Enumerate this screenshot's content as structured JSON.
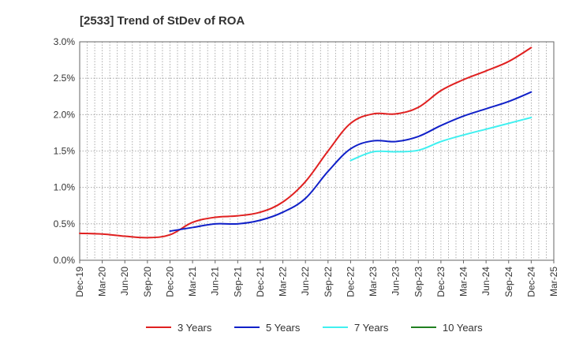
{
  "chart_data": {
    "type": "line",
    "title": "[2533]  Trend of StDev of ROA",
    "xlabel": "",
    "ylabel": "",
    "x_categories": [
      "Dec-19",
      "Mar-20",
      "Jun-20",
      "Sep-20",
      "Dec-20",
      "Mar-21",
      "Jun-21",
      "Sep-21",
      "Dec-21",
      "Mar-22",
      "Jun-22",
      "Sep-22",
      "Dec-22",
      "Mar-23",
      "Jun-23",
      "Sep-23",
      "Dec-23",
      "Mar-24",
      "Jun-24",
      "Sep-24",
      "Dec-24",
      "Mar-25"
    ],
    "y_ticks": [
      "0.0%",
      "0.5%",
      "1.0%",
      "1.5%",
      "2.0%",
      "2.5%",
      "3.0%"
    ],
    "ylim": [
      0,
      3.0
    ],
    "y_unit": "%",
    "grid": "dotted",
    "legend_position": "bottom",
    "series": [
      {
        "name": "3 Years",
        "color": "#e02020",
        "values": [
          0.37,
          0.36,
          0.33,
          0.31,
          0.35,
          0.52,
          0.59,
          0.61,
          0.66,
          0.8,
          1.08,
          1.5,
          1.88,
          2.01,
          2.01,
          2.1,
          2.33,
          2.48,
          2.6,
          2.73,
          2.92,
          null
        ]
      },
      {
        "name": "5 Years",
        "color": "#1020c8",
        "values": [
          null,
          null,
          null,
          null,
          0.4,
          0.45,
          0.5,
          0.5,
          0.55,
          0.66,
          0.85,
          1.22,
          1.53,
          1.64,
          1.63,
          1.7,
          1.85,
          1.98,
          2.08,
          2.18,
          2.31,
          null
        ]
      },
      {
        "name": "7 Years",
        "color": "#40f0f0",
        "values": [
          null,
          null,
          null,
          null,
          null,
          null,
          null,
          null,
          null,
          null,
          null,
          null,
          1.37,
          1.49,
          1.49,
          1.51,
          1.63,
          1.72,
          1.8,
          1.88,
          1.96,
          null
        ]
      },
      {
        "name": "10 Years",
        "color": "#208020",
        "values": [
          null,
          null,
          null,
          null,
          null,
          null,
          null,
          null,
          null,
          null,
          null,
          null,
          null,
          null,
          null,
          null,
          null,
          null,
          null,
          null,
          null,
          null
        ]
      }
    ]
  }
}
